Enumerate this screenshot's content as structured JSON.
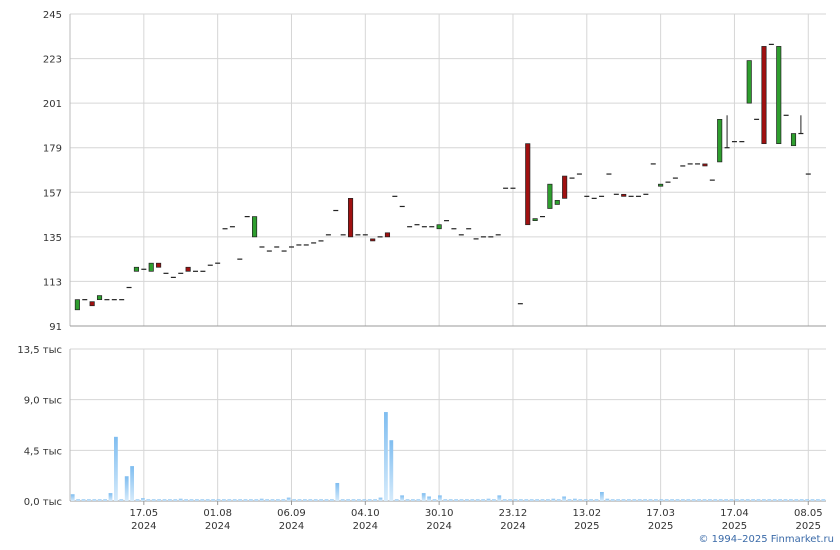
{
  "chart_data": [
    {
      "type": "candlestick",
      "y_ticks": [
        "245",
        "223",
        "201",
        "179",
        "157",
        "135",
        "113",
        "91"
      ],
      "ylim": [
        91,
        245
      ],
      "x_tick_labels": [
        {
          "day": "17.05",
          "year": "2024"
        },
        {
          "day": "01.08",
          "year": "2024"
        },
        {
          "day": "06.09",
          "year": "2024"
        },
        {
          "day": "04.10",
          "year": "2024"
        },
        {
          "day": "30.10",
          "year": "2024"
        },
        {
          "day": "23.12",
          "year": "2024"
        },
        {
          "day": "13.02",
          "year": "2025"
        },
        {
          "day": "17.03",
          "year": "2025"
        },
        {
          "day": "17.04",
          "year": "2025"
        },
        {
          "day": "08.05",
          "year": "2025"
        }
      ],
      "x_tick_positions": [
        10,
        20,
        30,
        40,
        50,
        60,
        70,
        80,
        90,
        100
      ],
      "xlim": [
        0,
        102.4
      ],
      "candles": [
        [
          1,
          99,
          104,
          99,
          104
        ],
        [
          2,
          104,
          104,
          104,
          104
        ],
        [
          3,
          103,
          101,
          101,
          103
        ],
        [
          4,
          104,
          106,
          104,
          106
        ],
        [
          5,
          104,
          104,
          104,
          104
        ],
        [
          6,
          104,
          104,
          104,
          104
        ],
        [
          7,
          104,
          104,
          104,
          104
        ],
        [
          8,
          110,
          110,
          110,
          110
        ],
        [
          9,
          118,
          120,
          118,
          120
        ],
        [
          10,
          119,
          119,
          119,
          119
        ],
        [
          11,
          118,
          122,
          118,
          122
        ],
        [
          12,
          122,
          120,
          120,
          122
        ],
        [
          13,
          117,
          117,
          117,
          117
        ],
        [
          14,
          115,
          115,
          115,
          115
        ],
        [
          15,
          117,
          117,
          117,
          117
        ],
        [
          16,
          120,
          118,
          118,
          120
        ],
        [
          17,
          118,
          118,
          118,
          118
        ],
        [
          18,
          118,
          118,
          118,
          118
        ],
        [
          19,
          121,
          121,
          121,
          121
        ],
        [
          20,
          122,
          122,
          122,
          122
        ],
        [
          21,
          139,
          139,
          139,
          139
        ],
        [
          22,
          140,
          140,
          140,
          140
        ],
        [
          23,
          124,
          124,
          124,
          124
        ],
        [
          24,
          145,
          145,
          145,
          145
        ],
        [
          25,
          135,
          145,
          135,
          145
        ],
        [
          26,
          130,
          130,
          130,
          130
        ],
        [
          27,
          128,
          128,
          128,
          128
        ],
        [
          28,
          130,
          130,
          130,
          130
        ],
        [
          29,
          128,
          128,
          128,
          128
        ],
        [
          30,
          130,
          130,
          130,
          130
        ],
        [
          31,
          131,
          131,
          131,
          131
        ],
        [
          32,
          131,
          131,
          131,
          131
        ],
        [
          33,
          132,
          132,
          132,
          132
        ],
        [
          34,
          133,
          133,
          133,
          133
        ],
        [
          35,
          136,
          136,
          136,
          136
        ],
        [
          36,
          148,
          148,
          148,
          148
        ],
        [
          37,
          136,
          136,
          136,
          136
        ],
        [
          38,
          154,
          135,
          135,
          154
        ],
        [
          39,
          136,
          136,
          136,
          136
        ],
        [
          40,
          136,
          136,
          136,
          136
        ],
        [
          41,
          134,
          133,
          133,
          134
        ],
        [
          42,
          135,
          135,
          135,
          135
        ],
        [
          43,
          137,
          135,
          135,
          137
        ],
        [
          44,
          155,
          155,
          155,
          155
        ],
        [
          45,
          150,
          150,
          150,
          150
        ],
        [
          46,
          140,
          140,
          140,
          140
        ],
        [
          47,
          141,
          141,
          141,
          141
        ],
        [
          48,
          140,
          140,
          140,
          140
        ],
        [
          49,
          140,
          140,
          140,
          140
        ],
        [
          50,
          139,
          141,
          139,
          141
        ],
        [
          51,
          143,
          143,
          143,
          143
        ],
        [
          52,
          139,
          139,
          139,
          139
        ],
        [
          53,
          136,
          136,
          136,
          136
        ],
        [
          54,
          139,
          139,
          139,
          139
        ],
        [
          55,
          134,
          134,
          134,
          134
        ],
        [
          56,
          135,
          135,
          135,
          135
        ],
        [
          57,
          135,
          135,
          135,
          135
        ],
        [
          58,
          136,
          136,
          136,
          136
        ],
        [
          59,
          159,
          159,
          159,
          159
        ],
        [
          60,
          159,
          159,
          159,
          159
        ],
        [
          61,
          102,
          102,
          102,
          102
        ],
        [
          62,
          181,
          141,
          141,
          181
        ],
        [
          63,
          143,
          144,
          143,
          144
        ],
        [
          64,
          145,
          145,
          145,
          145
        ],
        [
          65,
          149,
          161,
          149,
          161
        ],
        [
          66,
          151,
          153,
          151,
          153
        ],
        [
          67,
          165,
          154,
          154,
          165
        ],
        [
          68,
          164,
          164,
          164,
          164
        ],
        [
          69,
          166,
          166,
          166,
          166
        ],
        [
          70,
          155,
          155,
          155,
          155
        ],
        [
          71,
          154,
          154,
          154,
          154
        ],
        [
          72,
          155,
          155,
          155,
          155
        ],
        [
          73,
          166,
          166,
          166,
          166
        ],
        [
          74,
          156,
          156,
          156,
          156
        ],
        [
          75,
          156,
          155,
          155,
          156
        ],
        [
          76,
          155,
          155,
          155,
          155
        ],
        [
          77,
          155,
          155,
          155,
          155
        ],
        [
          78,
          156,
          156,
          156,
          156
        ],
        [
          79,
          171,
          171,
          171,
          171
        ],
        [
          80,
          160,
          161,
          160,
          161
        ],
        [
          81,
          162,
          162,
          162,
          162
        ],
        [
          82,
          164,
          164,
          164,
          164
        ],
        [
          83,
          170,
          170,
          170,
          170
        ],
        [
          84,
          171,
          171,
          171,
          171
        ],
        [
          85,
          171,
          171,
          171,
          171
        ],
        [
          86,
          171,
          170,
          170,
          171
        ],
        [
          87,
          163,
          163,
          163,
          163
        ],
        [
          88,
          172,
          193,
          172,
          193
        ],
        [
          89,
          179,
          179,
          179,
          195
        ],
        [
          90,
          182,
          182,
          182,
          182
        ],
        [
          91,
          182,
          182,
          182,
          182
        ],
        [
          92,
          201,
          222,
          201,
          222
        ],
        [
          93,
          193,
          193,
          193,
          193
        ],
        [
          94,
          229,
          181,
          181,
          229
        ],
        [
          95,
          230,
          230,
          230,
          230
        ],
        [
          96,
          181,
          229,
          181,
          229
        ],
        [
          97,
          195,
          195,
          195,
          195
        ],
        [
          98,
          180,
          186,
          180,
          186
        ],
        [
          99,
          186,
          186,
          186,
          195
        ],
        [
          100,
          166,
          166,
          166,
          166
        ]
      ],
      "colors": {
        "up": "#2e9e2e",
        "down": "#a01010",
        "grid": "#d6d6d6",
        "axis": "#888888"
      }
    },
    {
      "type": "bar",
      "y_ticks": [
        "13,5 тыс",
        "9,0 тыс",
        "4,5 тыс",
        "0,0 тыс"
      ],
      "ylim": [
        0,
        13.5
      ],
      "unit": "тыс",
      "values": [
        0.6,
        0.15,
        0.15,
        0.15,
        0.15,
        0.15,
        0.15,
        0.7,
        5.7,
        0.15,
        2.2,
        3.1,
        0.15,
        0.25,
        0.15,
        0.15,
        0.15,
        0.15,
        0.15,
        0.15,
        0.2,
        0.15,
        0.15,
        0.15,
        0.15,
        0.15,
        0.15,
        0.15,
        0.15,
        0.15,
        0.15,
        0.15,
        0.15,
        0.15,
        0.15,
        0.2,
        0.15,
        0.15,
        0.15,
        0.15,
        0.3,
        0.15,
        0.15,
        0.15,
        0.15,
        0.15,
        0.15,
        0.15,
        0.15,
        1.6,
        0.15,
        0.15,
        0.15,
        0.15,
        0.15,
        0.15,
        0.15,
        0.3,
        7.9,
        5.4,
        0.15,
        0.5,
        0.15,
        0.15,
        0.15,
        0.7,
        0.4,
        0.15,
        0.5,
        0.15,
        0.15,
        0.15,
        0.15,
        0.15,
        0.15,
        0.15,
        0.15,
        0.2,
        0.15,
        0.5,
        0.15,
        0.15,
        0.15,
        0.15,
        0.15,
        0.15,
        0.15,
        0.15,
        0.15,
        0.2,
        0.15,
        0.4,
        0.15,
        0.2,
        0.15,
        0.15,
        0.15,
        0.15,
        0.8,
        0.2,
        0.15,
        0.15,
        0.15,
        0.15,
        0.15,
        0.15,
        0.15,
        0.15,
        0.15,
        0.15,
        0.15,
        0.15,
        0.15,
        0.15,
        0.15,
        0.15,
        0.15,
        0.15,
        0.15,
        0.15,
        0.15,
        0.15,
        0.15,
        0.15,
        0.15,
        0.15,
        0.15,
        0.15,
        0.15,
        0.15,
        0.15,
        0.15,
        0.15,
        0.15,
        0.15,
        0.15,
        0.15,
        0.15,
        0.15,
        0.15
      ],
      "bar_color": "#7fbdf0"
    }
  ],
  "copyright": "© 1994–2025 Finmarket.ru"
}
